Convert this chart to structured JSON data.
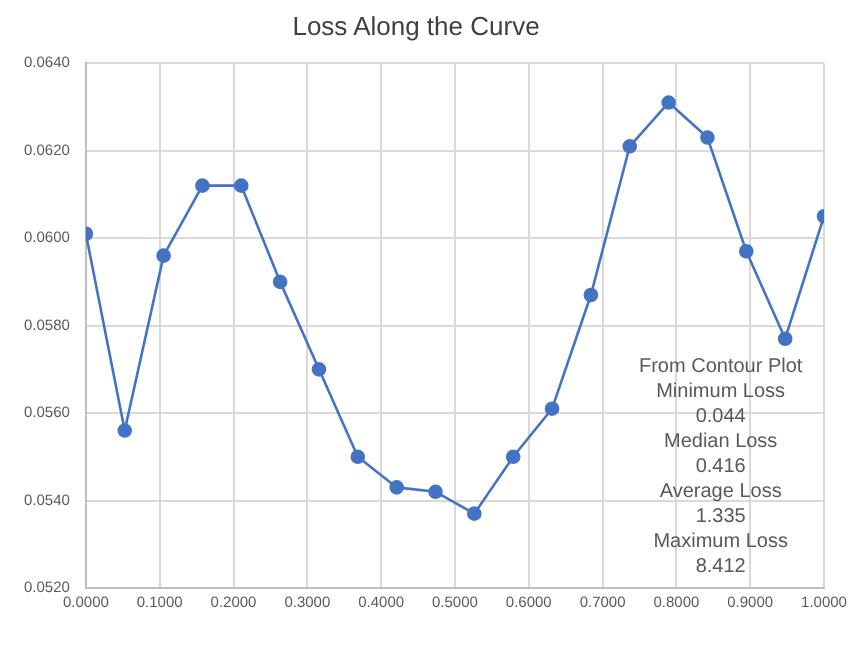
{
  "chart_data": {
    "type": "line",
    "title": "Loss Along the Curve",
    "x": [
      0,
      0.0526,
      0.1053,
      0.1579,
      0.2105,
      0.2632,
      0.3158,
      0.3684,
      0.4211,
      0.4737,
      0.5263,
      0.5789,
      0.6316,
      0.6842,
      0.7368,
      0.7895,
      0.8421,
      0.8947,
      0.9474,
      1
    ],
    "series": [
      {
        "color": "#4472c4",
        "values": [
          0.0601,
          0.0556,
          0.0596,
          0.0612,
          0.0612,
          0.059,
          0.057,
          0.055,
          0.0543,
          0.0542,
          0.0537,
          0.055,
          0.0561,
          0.0587,
          0.0621,
          0.0631,
          0.0623,
          0.0597,
          0.0577,
          0.0605
        ]
      }
    ],
    "xlim": [
      0,
      1
    ],
    "xticks": [
      {
        "value": 0,
        "label": "0.0000"
      },
      {
        "value": 0.1,
        "label": "0.1000"
      },
      {
        "value": 0.2,
        "label": "0.2000"
      },
      {
        "value": 0.3,
        "label": "0.3000"
      },
      {
        "value": 0.4,
        "label": "0.4000"
      },
      {
        "value": 0.5,
        "label": "0.5000"
      },
      {
        "value": 0.6,
        "label": "0.6000"
      },
      {
        "value": 0.7,
        "label": "0.7000"
      },
      {
        "value": 0.8,
        "label": "0.8000"
      },
      {
        "value": 0.9,
        "label": "0.9000"
      },
      {
        "value": 1,
        "label": "1.0000"
      }
    ],
    "ylim": [
      0.052,
      0.064
    ],
    "yticks": [
      {
        "value": 0.052,
        "label": "0.0520"
      },
      {
        "value": 0.054,
        "label": "0.0540"
      },
      {
        "value": 0.056,
        "label": "0.0560"
      },
      {
        "value": 0.058,
        "label": "0.0580"
      },
      {
        "value": 0.06,
        "label": "0.0600"
      },
      {
        "value": 0.062,
        "label": "0.0620"
      },
      {
        "value": 0.064,
        "label": "0.0640"
      }
    ],
    "grid": true,
    "marker": "circle",
    "line_style": "solid",
    "annotations": [
      "From Contour Plot",
      "Minimum Loss",
      "0.044",
      "Median Loss",
      "0.416",
      "Average Loss",
      "1.335",
      "Maximum Loss",
      "8.412"
    ]
  }
}
